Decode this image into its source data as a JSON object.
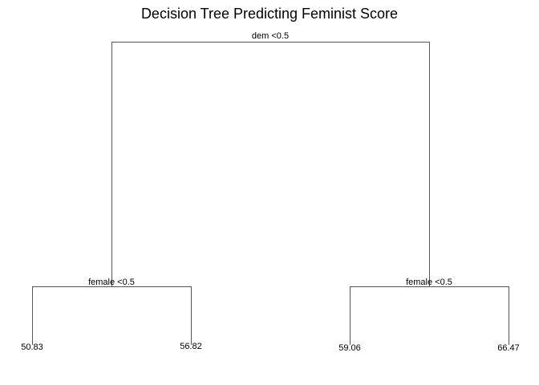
{
  "title": "Decision Tree Predicting Feminist Score",
  "tree": {
    "split": "dem <0.5",
    "left": {
      "split": "female <0.5",
      "left": {
        "leaf": "50.83"
      },
      "right": {
        "leaf": "56.82"
      }
    },
    "right": {
      "split": "female <0.5",
      "left": {
        "leaf": "59.06"
      },
      "right": {
        "leaf": "66.47"
      }
    }
  },
  "colors": {
    "edge": "#555555",
    "text": "#000000",
    "background": "#ffffff"
  }
}
